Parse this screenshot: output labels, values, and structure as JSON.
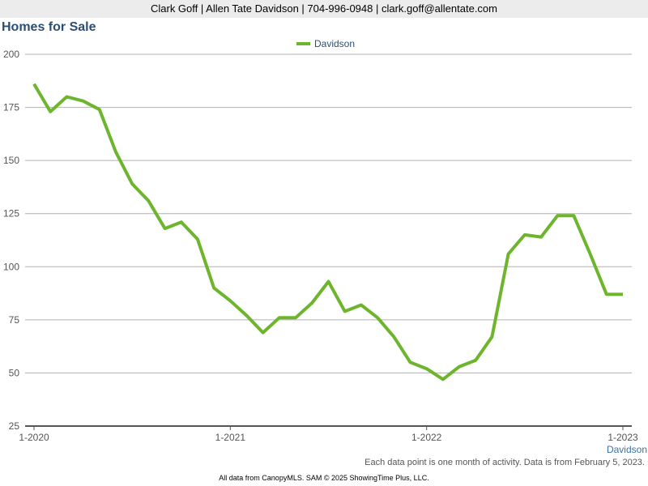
{
  "header": {
    "contact_line": "Clark Goff | Allen Tate Davidson | 704-996-0948 | clark.goff@allentate.com"
  },
  "footnote": "Each data point is one month of activity. Data is from February 5, 2023.",
  "footer": "All data from CanopyMLS. SAM © 2025 ShowingTime Plus, LLC.",
  "colors": {
    "series": "#6db52c",
    "title": "#2b4f74",
    "grid": "#b0b0b0"
  },
  "chart_data": {
    "type": "line",
    "title": "Homes for Sale",
    "legend_position": "top-center",
    "grid": true,
    "ylim": [
      25,
      200
    ],
    "yticks": [
      25,
      50,
      75,
      100,
      125,
      150,
      175,
      200
    ],
    "x_ticks": [
      "1-2020",
      "1-2021",
      "1-2022",
      "1-2023"
    ],
    "x_tick_index": [
      0,
      12,
      24,
      36
    ],
    "x_series_label": "Davidson",
    "x": [
      "1-2020",
      "2-2020",
      "3-2020",
      "4-2020",
      "5-2020",
      "6-2020",
      "7-2020",
      "8-2020",
      "9-2020",
      "10-2020",
      "11-2020",
      "12-2020",
      "1-2021",
      "2-2021",
      "3-2021",
      "4-2021",
      "5-2021",
      "6-2021",
      "7-2021",
      "8-2021",
      "9-2021",
      "10-2021",
      "11-2021",
      "12-2021",
      "1-2022",
      "2-2022",
      "3-2022",
      "4-2022",
      "5-2022",
      "6-2022",
      "7-2022",
      "8-2022",
      "9-2022",
      "10-2022",
      "11-2022",
      "12-2022",
      "1-2023"
    ],
    "series": [
      {
        "name": "Davidson",
        "color": "#6db52c",
        "values": [
          186,
          173,
          180,
          178,
          174,
          154,
          139,
          131,
          118,
          121,
          113,
          90,
          84,
          77,
          69,
          76,
          76,
          83,
          93,
          79,
          82,
          76,
          67,
          55,
          52,
          47,
          53,
          56,
          67,
          106,
          115,
          114,
          124,
          124,
          106,
          87,
          87
        ]
      }
    ]
  }
}
